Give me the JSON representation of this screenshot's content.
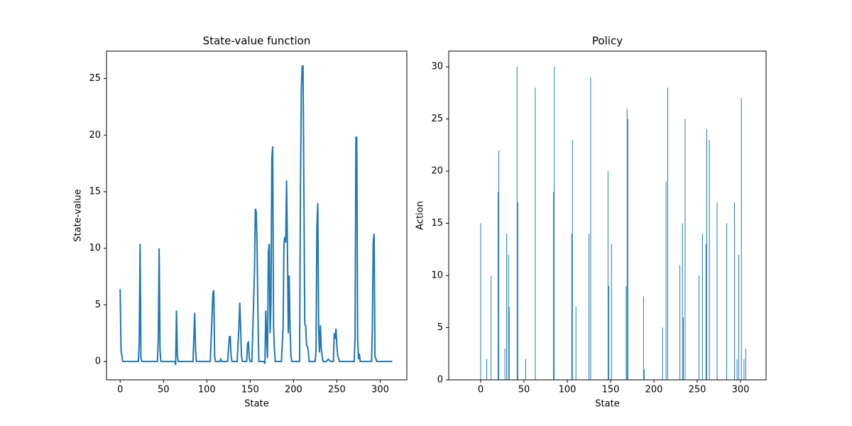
{
  "chart_data": [
    {
      "type": "line",
      "title": "State-value function",
      "x_label": "State",
      "y_label": "State-value",
      "color": "#1f77b4",
      "xlim": [
        -15.75,
        330.75
      ],
      "ylim": [
        -1.62,
        27.42
      ],
      "xticks": [
        0,
        50,
        100,
        150,
        200,
        250,
        300
      ],
      "yticks": [
        0,
        5,
        10,
        15,
        20,
        25
      ],
      "x": [
        0,
        1,
        2,
        3,
        21,
        22,
        23,
        24,
        25,
        43,
        44,
        45,
        46,
        47,
        63,
        64,
        65,
        66,
        67,
        84,
        85,
        86,
        87,
        88,
        104,
        106,
        107,
        108,
        109,
        110,
        115,
        116,
        117,
        124,
        126,
        127,
        128,
        129,
        135,
        137,
        138,
        139,
        140,
        141,
        146,
        147,
        148,
        149,
        150,
        152,
        155,
        156,
        157,
        158,
        159,
        160,
        166,
        167,
        168,
        169,
        170,
        171,
        172,
        173,
        174,
        175,
        176,
        177,
        178,
        179,
        186,
        188,
        189,
        190,
        191,
        192,
        193,
        194,
        195,
        196,
        197,
        198,
        207,
        208,
        209,
        210,
        211,
        212,
        213,
        214,
        215,
        216,
        217,
        218,
        225,
        226,
        227,
        228,
        229,
        230,
        231,
        232,
        233,
        234,
        238,
        240,
        243,
        246,
        247,
        248,
        249,
        250,
        251,
        252,
        253,
        270,
        271,
        272,
        273,
        274,
        275,
        276,
        277,
        290,
        291,
        292,
        293,
        294,
        295,
        296,
        314
      ],
      "values": [
        6.4,
        1,
        0.5,
        0,
        0,
        1.5,
        10.4,
        0.3,
        0,
        0,
        2,
        10,
        1,
        0,
        0,
        -0.3,
        4.5,
        0.5,
        0,
        0,
        2,
        4.3,
        1,
        0,
        0,
        4,
        6,
        6.3,
        0.5,
        0,
        0,
        0.2,
        0,
        0,
        2.2,
        2.2,
        0.5,
        0,
        0,
        3,
        5.2,
        3,
        0.5,
        0,
        0,
        1.6,
        1.7,
        0.3,
        0,
        0,
        8,
        13.5,
        13.2,
        10,
        4,
        0,
        0,
        -0.2,
        4.5,
        2,
        0.3,
        9.7,
        10.4,
        2.5,
        5,
        18,
        19,
        3,
        1,
        0,
        0,
        3,
        10.5,
        11,
        10.5,
        16,
        10,
        2.5,
        7.6,
        3,
        0.5,
        0,
        0,
        15,
        24,
        26.1,
        26.1,
        15,
        3.3,
        3.2,
        1.5,
        1.3,
        1,
        0,
        0,
        1,
        12,
        14,
        3,
        0.8,
        3.2,
        1.2,
        0.5,
        0,
        0,
        0.2,
        0,
        0,
        2.5,
        2,
        2.9,
        1.5,
        0.5,
        0.3,
        0,
        0,
        2,
        19.8,
        19.8,
        2,
        0.2,
        0.7,
        0,
        0,
        3,
        10.5,
        11.3,
        0.4,
        0.3,
        0,
        0
      ]
    },
    {
      "type": "bar",
      "title": "Policy",
      "x_label": "State",
      "y_label": "Action",
      "color": "#1f77b4",
      "xlim": [
        -36.9,
        329.5
      ],
      "ylim": [
        0,
        31.5
      ],
      "xticks": [
        0,
        50,
        100,
        150,
        200,
        250,
        300
      ],
      "yticks": [
        0,
        5,
        10,
        15,
        20,
        25,
        30
      ],
      "x": [
        0,
        7,
        12,
        20,
        21,
        28,
        30,
        32,
        33,
        42,
        43,
        52,
        63,
        84,
        85,
        105,
        106,
        110,
        125,
        127,
        147,
        148,
        151,
        168,
        169,
        170,
        188,
        189,
        210,
        214,
        216,
        230,
        233,
        234,
        236,
        252,
        256,
        260,
        261,
        264,
        273,
        284,
        293,
        296,
        298,
        301,
        304,
        306
      ],
      "values": [
        15,
        2,
        10,
        18,
        22,
        3,
        14,
        12,
        7,
        30,
        17,
        2,
        28,
        18,
        30,
        14,
        23,
        7,
        14,
        29,
        20,
        9,
        13,
        9,
        26,
        25,
        8,
        1,
        5,
        19,
        28,
        11,
        15,
        6,
        25,
        10,
        14,
        13,
        24,
        23,
        17,
        15,
        17,
        2,
        12,
        27,
        2,
        3
      ]
    }
  ]
}
